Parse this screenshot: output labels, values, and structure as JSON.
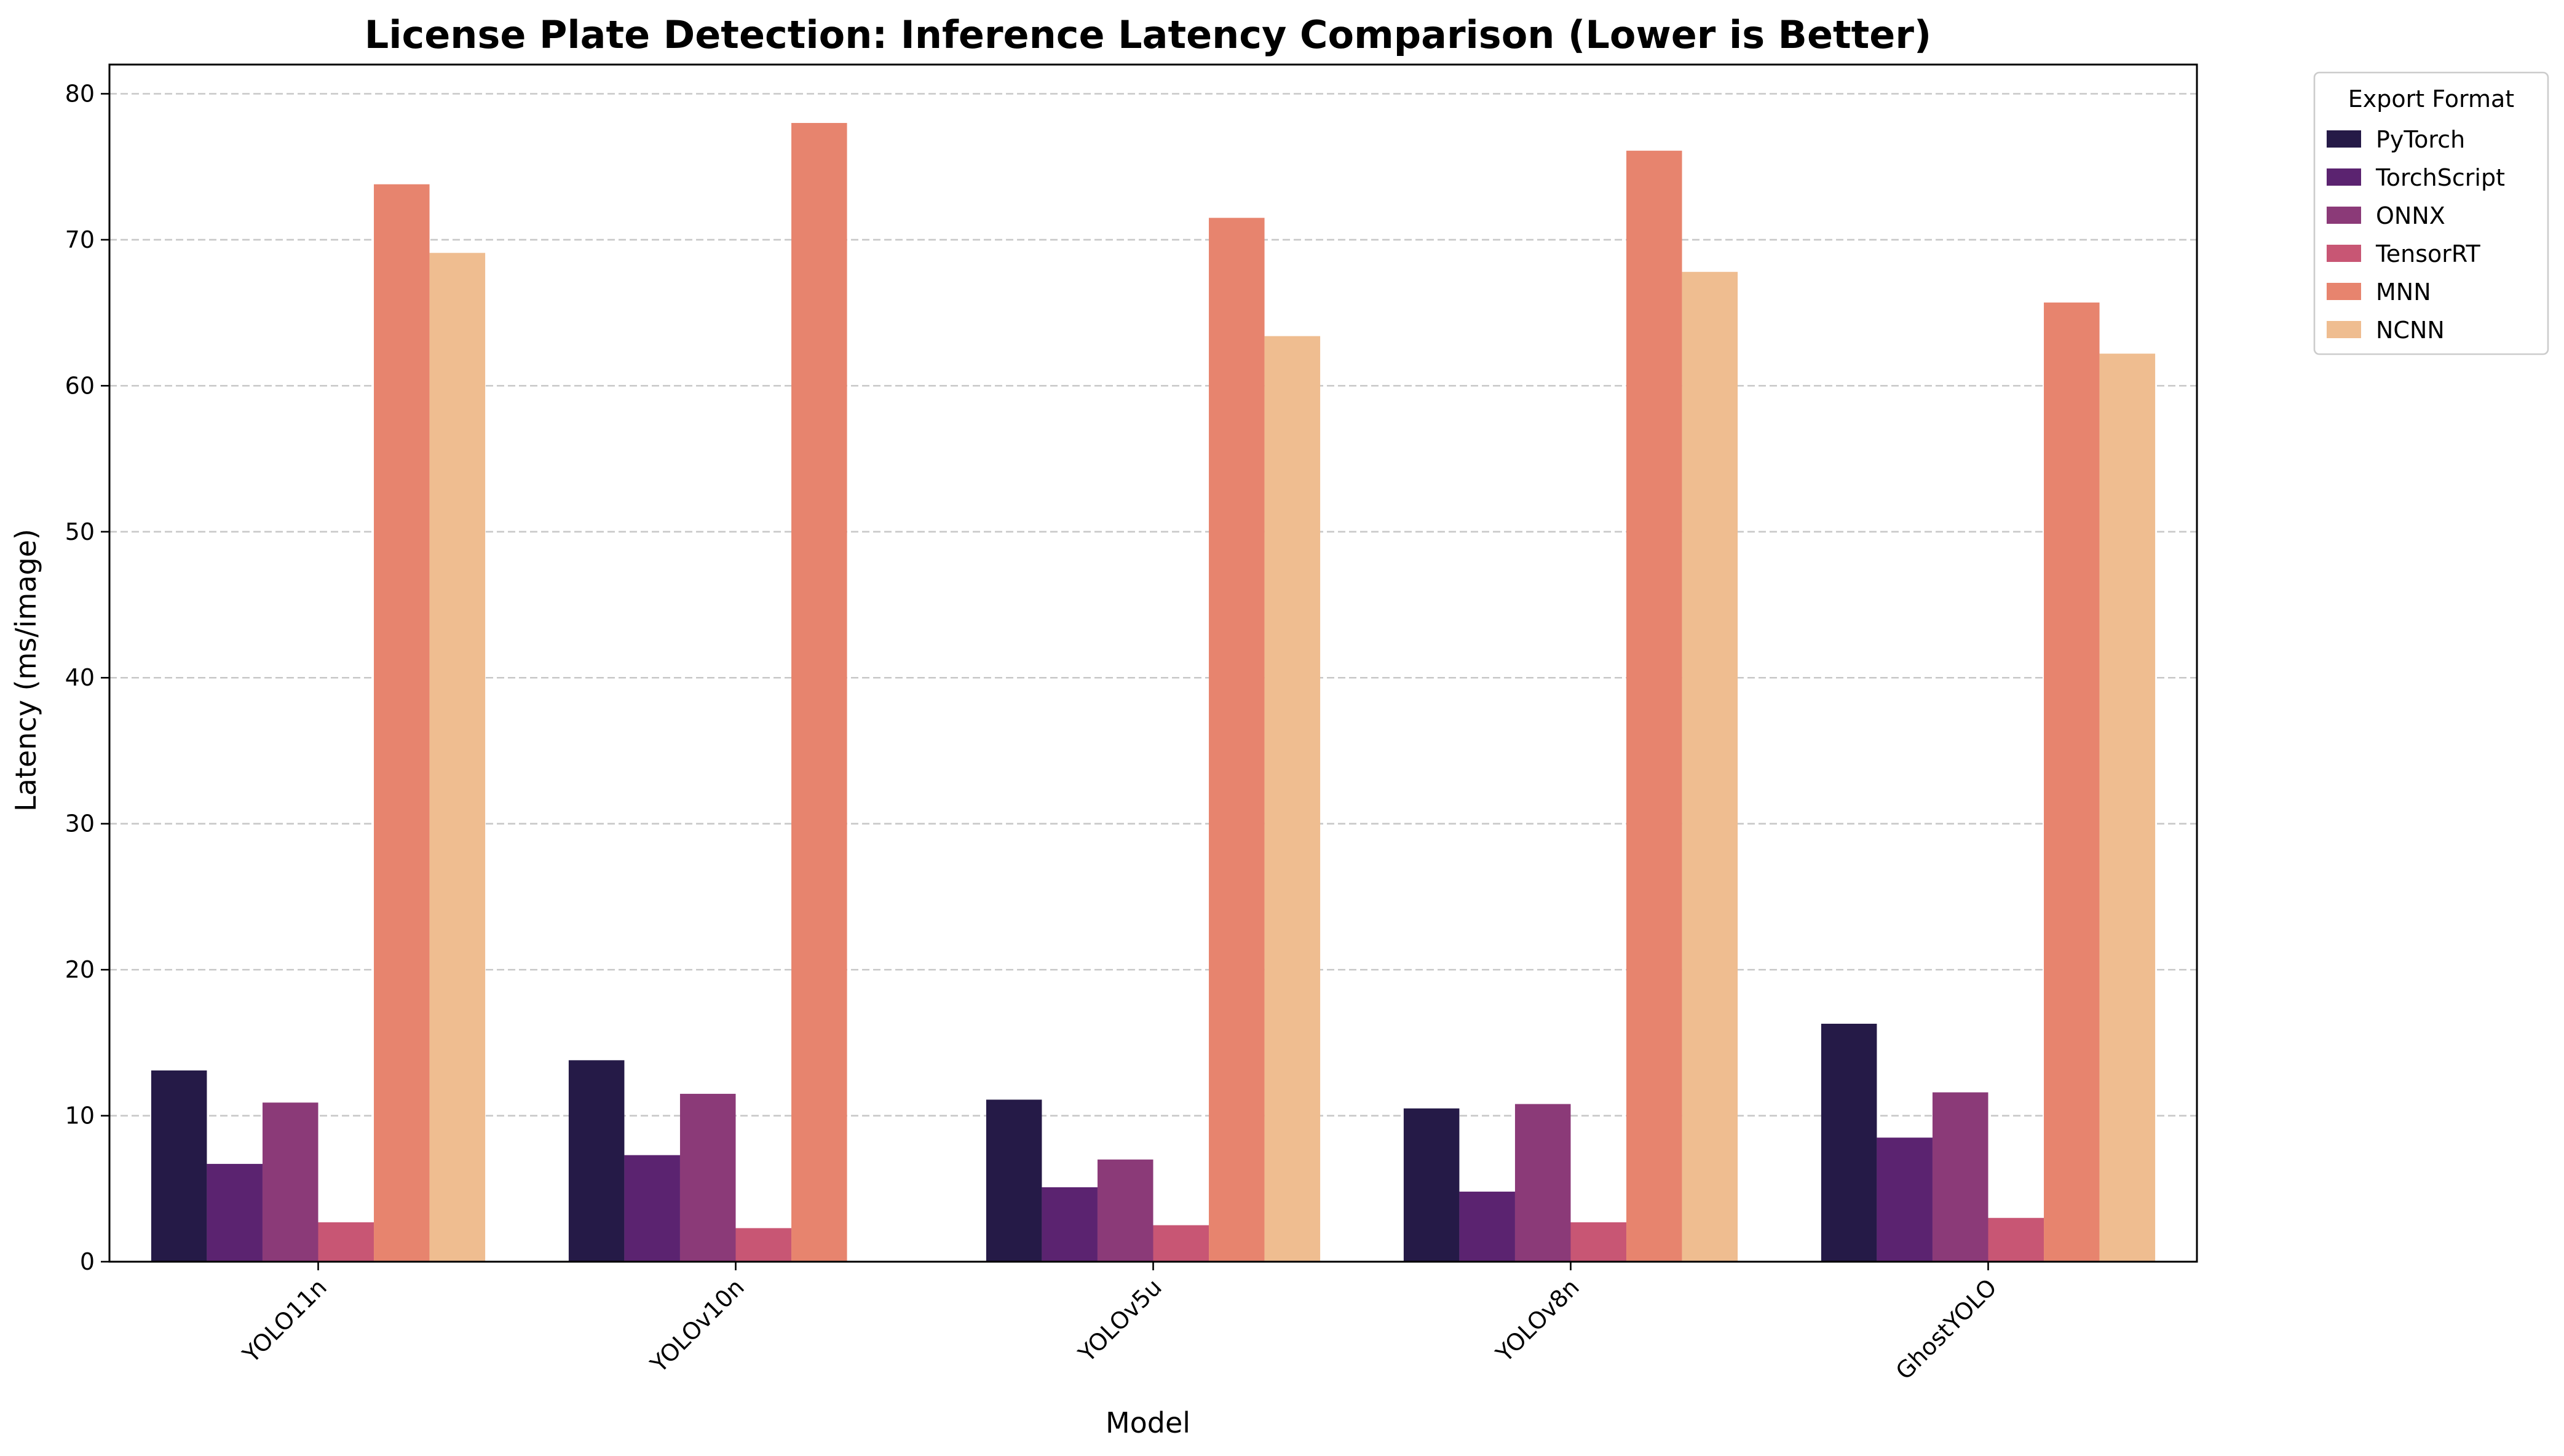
{
  "chart_data": {
    "type": "bar",
    "title": "License Plate Detection: Inference Latency Comparison (Lower is Better)",
    "xlabel": "Model",
    "ylabel": "Latency (ms/image)",
    "ylim": [
      0,
      82
    ],
    "yticks": [
      0,
      10,
      20,
      30,
      40,
      50,
      60,
      70,
      80
    ],
    "grid": "y-dashed",
    "categories": [
      "YOLO11n",
      "YOLOv10n",
      "YOLOv5u",
      "YOLOv8n",
      "GhostYOLO"
    ],
    "legend": {
      "title": "Export Format",
      "placement": "outside-top-right"
    },
    "series": [
      {
        "name": "PyTorch",
        "color": "#251a47",
        "values": [
          13.1,
          13.8,
          11.1,
          10.5,
          16.3
        ]
      },
      {
        "name": "TorchScript",
        "color": "#5b2370",
        "values": [
          6.7,
          7.3,
          5.1,
          4.8,
          8.5
        ]
      },
      {
        "name": "ONNX",
        "color": "#8b3a78",
        "values": [
          10.9,
          11.5,
          7.0,
          10.8,
          11.6
        ]
      },
      {
        "name": "TensorRT",
        "color": "#c85674",
        "values": [
          2.7,
          2.3,
          2.5,
          2.7,
          3.0
        ]
      },
      {
        "name": "MNN",
        "color": "#e7846e",
        "values": [
          73.8,
          78.0,
          71.5,
          76.1,
          65.7
        ]
      },
      {
        "name": "NCNN",
        "color": "#efbd90",
        "values": [
          69.1,
          null,
          63.4,
          67.8,
          62.2
        ]
      }
    ]
  }
}
